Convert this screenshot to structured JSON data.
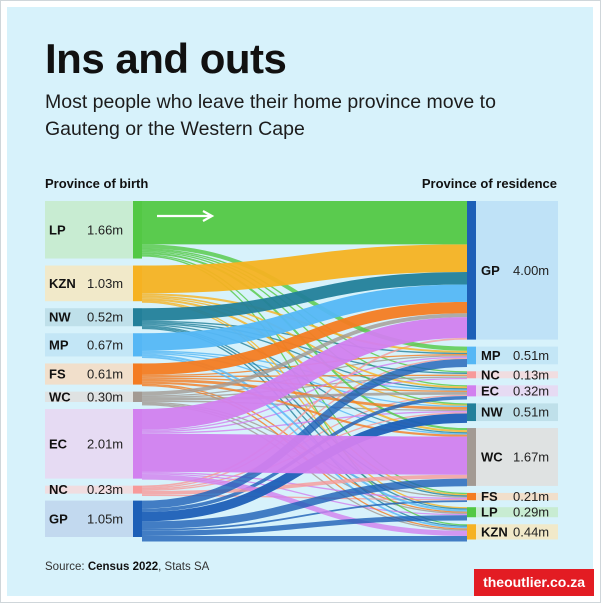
{
  "title": "Ins and outs",
  "subtitle": "Most people who leave their home province move to Gauteng or the Western Cape",
  "source": {
    "prefix": "Source: ",
    "bold": "Census 2022",
    "suffix": ", Stats SA"
  },
  "brand": "theoutlier.co.za",
  "chart_data": {
    "type": "sankey",
    "left_axis_label": "Province of birth",
    "right_axis_label": "Province of residence",
    "sources": [
      {
        "code": "LP",
        "value_label": "1.66m",
        "value": 1.66,
        "color": "#53c844",
        "box": "#c8ecd2"
      },
      {
        "code": "KZN",
        "value_label": "1.03m",
        "value": 1.03,
        "color": "#f6b222",
        "box": "#f1e9c9"
      },
      {
        "code": "NW",
        "value_label": "0.52m",
        "value": 0.52,
        "color": "#23809a",
        "box": "#bfe0ea"
      },
      {
        "code": "MP",
        "value_label": "0.67m",
        "value": 0.67,
        "color": "#55b7f5",
        "box": "#c3e6f6"
      },
      {
        "code": "FS",
        "value_label": "0.61m",
        "value": 0.61,
        "color": "#f47c22",
        "box": "#f1dfcb"
      },
      {
        "code": "WC",
        "value_label": "0.30m",
        "value": 0.3,
        "color": "#a39a93",
        "box": "#dfe2e2"
      },
      {
        "code": "EC",
        "value_label": "2.01m",
        "value": 2.01,
        "color": "#d280ef",
        "box": "#e6dbf3"
      },
      {
        "code": "NC",
        "value_label": "0.23m",
        "value": 0.23,
        "color": "#f79a9a",
        "box": "#f0dde0"
      },
      {
        "code": "GP",
        "value_label": "1.05m",
        "value": 1.05,
        "color": "#1d5fb7",
        "box": "#c2d9ef"
      }
    ],
    "targets": [
      {
        "code": "GP",
        "value_label": "4.00m",
        "value": 4.0,
        "color": "#1d5fb7",
        "box": "#bfe2f7"
      },
      {
        "code": "MP",
        "value_label": "0.51m",
        "value": 0.51,
        "color": "#55b7f5",
        "box": "#c3e6f6"
      },
      {
        "code": "NC",
        "value_label": "0.13m",
        "value": 0.13,
        "color": "#f79a9a",
        "box": "#f0dde0"
      },
      {
        "code": "EC",
        "value_label": "0.32m",
        "value": 0.32,
        "color": "#d280ef",
        "box": "#e6dbf3"
      },
      {
        "code": "NW",
        "value_label": "0.51m",
        "value": 0.51,
        "color": "#23809a",
        "box": "#bfe0ea"
      },
      {
        "code": "WC",
        "value_label": "1.67m",
        "value": 1.67,
        "color": "#a39a93",
        "box": "#dfe2e2"
      },
      {
        "code": "FS",
        "value_label": "0.21m",
        "value": 0.21,
        "color": "#f47c22",
        "box": "#f1dfcb"
      },
      {
        "code": "LP",
        "value_label": "0.29m",
        "value": 0.29,
        "color": "#53c844",
        "box": "#c8ecd2"
      },
      {
        "code": "KZN",
        "value_label": "0.44m",
        "value": 0.44,
        "color": "#f6b222",
        "box": "#f1e9c9"
      }
    ],
    "flows": [
      {
        "from": "LP",
        "to": "GP",
        "value": 1.25
      },
      {
        "from": "LP",
        "to": "MP",
        "value": 0.12
      },
      {
        "from": "LP",
        "to": "NW",
        "value": 0.03
      },
      {
        "from": "LP",
        "to": "WC",
        "value": 0.06
      },
      {
        "from": "LP",
        "to": "KZN",
        "value": 0.03
      },
      {
        "from": "LP",
        "to": "EC",
        "value": 0.02
      },
      {
        "from": "LP",
        "to": "FS",
        "value": 0.02
      },
      {
        "from": "LP",
        "to": "NC",
        "value": 0.01
      },
      {
        "from": "KZN",
        "to": "GP",
        "value": 0.8
      },
      {
        "from": "KZN",
        "to": "MP",
        "value": 0.06
      },
      {
        "from": "KZN",
        "to": "WC",
        "value": 0.06
      },
      {
        "from": "KZN",
        "to": "EC",
        "value": 0.05
      },
      {
        "from": "KZN",
        "to": "FS",
        "value": 0.03
      },
      {
        "from": "KZN",
        "to": "NW",
        "value": 0.02
      },
      {
        "from": "KZN",
        "to": "LP",
        "value": 0.01
      },
      {
        "from": "NW",
        "to": "GP",
        "value": 0.36
      },
      {
        "from": "NW",
        "to": "NC",
        "value": 0.03
      },
      {
        "from": "NW",
        "to": "WC",
        "value": 0.03
      },
      {
        "from": "NW",
        "to": "FS",
        "value": 0.03
      },
      {
        "from": "NW",
        "to": "LP",
        "value": 0.03
      },
      {
        "from": "NW",
        "to": "MP",
        "value": 0.02
      },
      {
        "from": "NW",
        "to": "EC",
        "value": 0.01
      },
      {
        "from": "NW",
        "to": "KZN",
        "value": 0.01
      },
      {
        "from": "MP",
        "to": "GP",
        "value": 0.5
      },
      {
        "from": "MP",
        "to": "KZN",
        "value": 0.05
      },
      {
        "from": "MP",
        "to": "LP",
        "value": 0.06
      },
      {
        "from": "MP",
        "to": "WC",
        "value": 0.03
      },
      {
        "from": "MP",
        "to": "NW",
        "value": 0.02
      },
      {
        "from": "MP",
        "to": "EC",
        "value": 0.01
      },
      {
        "from": "FS",
        "to": "GP",
        "value": 0.33
      },
      {
        "from": "FS",
        "to": "NW",
        "value": 0.08
      },
      {
        "from": "FS",
        "to": "WC",
        "value": 0.06
      },
      {
        "from": "FS",
        "to": "NC",
        "value": 0.04
      },
      {
        "from": "FS",
        "to": "EC",
        "value": 0.04
      },
      {
        "from": "FS",
        "to": "KZN",
        "value": 0.03
      },
      {
        "from": "FS",
        "to": "MP",
        "value": 0.02
      },
      {
        "from": "FS",
        "to": "LP",
        "value": 0.01
      },
      {
        "from": "WC",
        "to": "GP",
        "value": 0.11
      },
      {
        "from": "WC",
        "to": "EC",
        "value": 0.08
      },
      {
        "from": "WC",
        "to": "KZN",
        "value": 0.03
      },
      {
        "from": "WC",
        "to": "NC",
        "value": 0.03
      },
      {
        "from": "WC",
        "to": "FS",
        "value": 0.02
      },
      {
        "from": "WC",
        "to": "MP",
        "value": 0.01
      },
      {
        "from": "WC",
        "to": "NW",
        "value": 0.01
      },
      {
        "from": "WC",
        "to": "LP",
        "value": 0.01
      },
      {
        "from": "EC",
        "to": "WC",
        "value": 1.1
      },
      {
        "from": "EC",
        "to": "GP",
        "value": 0.6
      },
      {
        "from": "EC",
        "to": "KZN",
        "value": 0.15
      },
      {
        "from": "EC",
        "to": "FS",
        "value": 0.04
      },
      {
        "from": "EC",
        "to": "NW",
        "value": 0.04
      },
      {
        "from": "EC",
        "to": "MP",
        "value": 0.04
      },
      {
        "from": "EC",
        "to": "NC",
        "value": 0.02
      },
      {
        "from": "EC",
        "to": "LP",
        "value": 0.02
      },
      {
        "from": "NC",
        "to": "WC",
        "value": 0.11
      },
      {
        "from": "NC",
        "to": "GP",
        "value": 0.05
      },
      {
        "from": "NC",
        "to": "NW",
        "value": 0.03
      },
      {
        "from": "NC",
        "to": "FS",
        "value": 0.02
      },
      {
        "from": "NC",
        "to": "EC",
        "value": 0.01
      },
      {
        "from": "NC",
        "to": "MP",
        "value": 0.01
      },
      {
        "from": "GP",
        "to": "LP",
        "value": 0.15
      },
      {
        "from": "GP",
        "to": "MP",
        "value": 0.23
      },
      {
        "from": "GP",
        "to": "NW",
        "value": 0.27
      },
      {
        "from": "GP",
        "to": "WC",
        "value": 0.22
      },
      {
        "from": "GP",
        "to": "EC",
        "value": 0.1
      },
      {
        "from": "GP",
        "to": "FS",
        "value": 0.05
      },
      {
        "from": "GP",
        "to": "NC",
        "value": 0.0
      },
      {
        "from": "GP",
        "to": "KZN",
        "value": 0.16
      }
    ]
  }
}
